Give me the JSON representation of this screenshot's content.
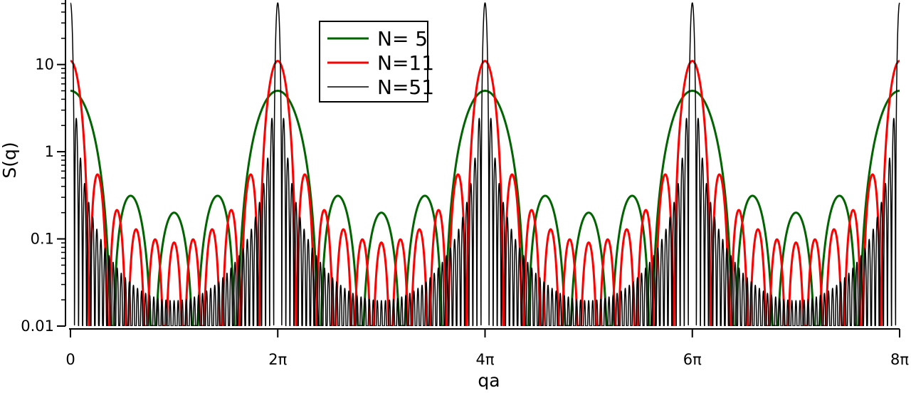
{
  "chart_data": {
    "type": "line",
    "xlabel": "qa",
    "ylabel": "S(q)",
    "xlim_over_pi": [
      0,
      8
    ],
    "ylim": [
      0.01,
      55
    ],
    "y_scale": "log",
    "x_ticks": [
      {
        "value_over_pi": 0,
        "label": "0"
      },
      {
        "value_over_pi": 2,
        "label": "2π"
      },
      {
        "value_over_pi": 4,
        "label": "4π"
      },
      {
        "value_over_pi": 6,
        "label": "6π"
      },
      {
        "value_over_pi": 8,
        "label": "8π"
      }
    ],
    "y_ticks": [
      {
        "value": 0.01,
        "label": "0.01"
      },
      {
        "value": 0.1,
        "label": "0.1"
      },
      {
        "value": 1,
        "label": "1"
      },
      {
        "value": 10,
        "label": "10"
      }
    ],
    "legend_position": "top-center",
    "series": [
      {
        "name": "N= 5",
        "N": 5,
        "color": "#006400",
        "peak_value": 5
      },
      {
        "name": "N=11",
        "N": 11,
        "color": "#ff0000",
        "peak_value": 11
      },
      {
        "name": "N=51",
        "N": 51,
        "color": "#000000",
        "peak_value": 51
      }
    ]
  }
}
